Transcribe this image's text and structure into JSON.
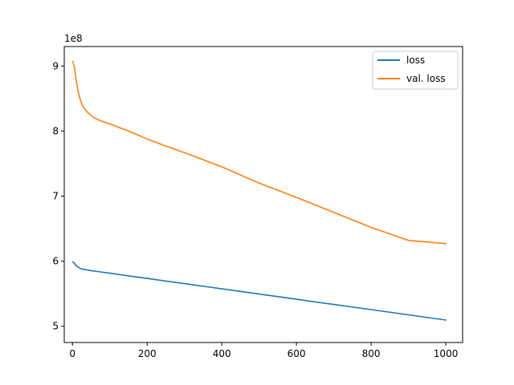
{
  "chart_data": {
    "type": "line",
    "title": "",
    "xlabel": "",
    "ylabel": "",
    "y_offset_label": "1e8",
    "xlim": [
      -22,
      1045
    ],
    "ylim": [
      4.75,
      9.3
    ],
    "x_ticks": [
      0,
      200,
      400,
      600,
      800,
      1000
    ],
    "y_ticks": [
      5,
      6,
      7,
      8,
      9
    ],
    "grid": false,
    "legend_position": "top-right",
    "series": [
      {
        "name": "loss",
        "color": "#1f77b4",
        "x": [
          1,
          5,
          10,
          15,
          20,
          25,
          30,
          40,
          50,
          75,
          100,
          150,
          200,
          250,
          300,
          400,
          500,
          600,
          700,
          800,
          900,
          1000
        ],
        "y": [
          5.99,
          5.97,
          5.93,
          5.91,
          5.89,
          5.88,
          5.875,
          5.865,
          5.855,
          5.835,
          5.815,
          5.775,
          5.735,
          5.695,
          5.655,
          5.575,
          5.495,
          5.415,
          5.335,
          5.255,
          5.175,
          5.095
        ]
      },
      {
        "name": "val. loss",
        "color": "#ff7f0e",
        "x": [
          1,
          5,
          10,
          15,
          20,
          25,
          30,
          40,
          50,
          60,
          75,
          100,
          150,
          200,
          250,
          300,
          400,
          500,
          600,
          700,
          800,
          900,
          1000
        ],
        "y": [
          9.07,
          8.98,
          8.78,
          8.62,
          8.5,
          8.42,
          8.36,
          8.29,
          8.24,
          8.2,
          8.16,
          8.11,
          8.0,
          7.88,
          7.77,
          7.67,
          7.45,
          7.2,
          6.98,
          6.75,
          6.52,
          6.32,
          6.27
        ]
      }
    ]
  }
}
